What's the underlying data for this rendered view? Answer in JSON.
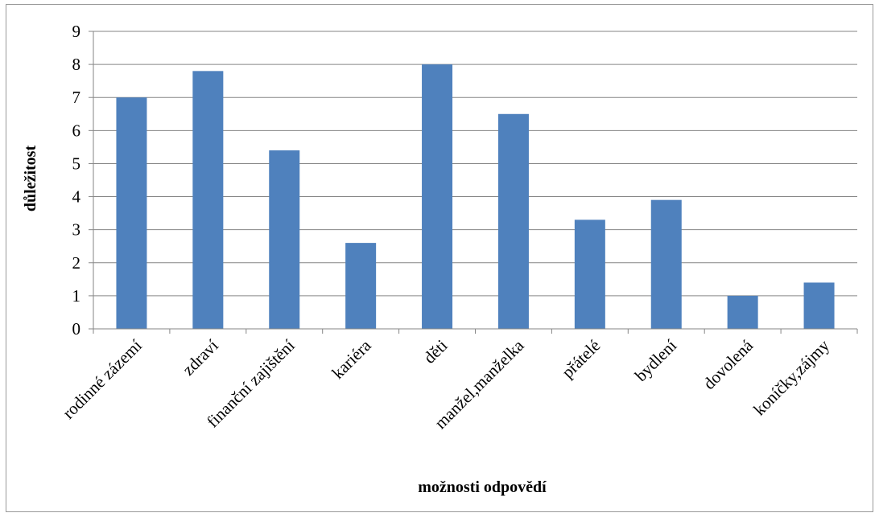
{
  "chart_data": {
    "type": "bar",
    "title": "",
    "xlabel": "možnosti odpovědí",
    "ylabel": "důležitost",
    "categories": [
      "rodinné zázemí",
      "zdraví",
      "finanční zajištění",
      "kariéra",
      "děti",
      "manžel,manželka",
      "přátelé",
      "bydlení",
      "dovolená",
      "koníčky,zájmy"
    ],
    "values": [
      7.0,
      7.8,
      5.4,
      2.6,
      8.0,
      6.5,
      3.3,
      3.9,
      1.0,
      1.4
    ],
    "ylim": [
      0,
      9
    ],
    "yticks": [
      "0",
      "1",
      "2",
      "3",
      "4",
      "5",
      "6",
      "7",
      "8",
      "9"
    ],
    "grid": true,
    "legend": "none",
    "colors": {
      "bar": "#4f81bd",
      "grid": "#868686",
      "axis": "#868686"
    }
  }
}
